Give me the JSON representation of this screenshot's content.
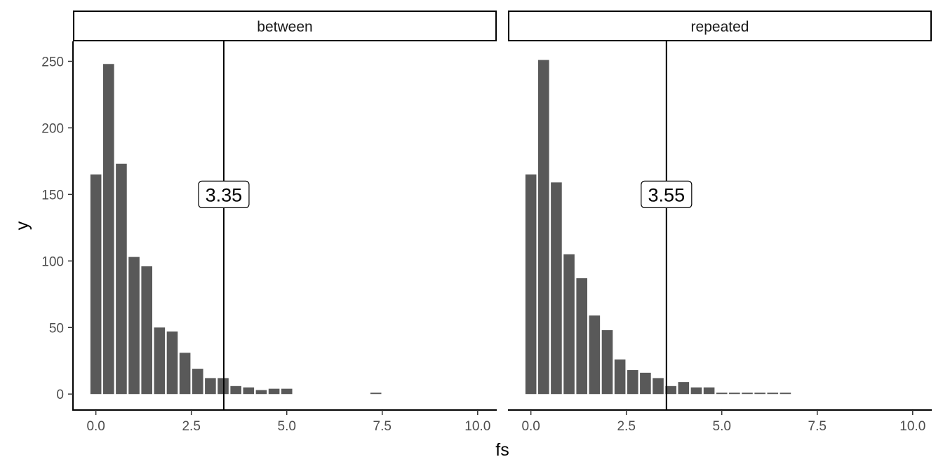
{
  "chart_data": {
    "type": "bar",
    "xlabel": "fs",
    "ylabel": "y",
    "xlim": [
      -0.6,
      10.5
    ],
    "ylim": [
      -12,
      265
    ],
    "xticks": [
      0.0,
      2.5,
      5.0,
      7.5,
      10.0
    ],
    "xtick_labels": [
      "0.0",
      "2.5",
      "5.0",
      "7.5",
      "10.0"
    ],
    "yticks": [
      0,
      50,
      100,
      150,
      200,
      250
    ],
    "ytick_labels": [
      "0",
      "50",
      "100",
      "150",
      "200",
      "250"
    ],
    "bin_width": 0.3333,
    "bar_color": "#595959",
    "grid": false,
    "panels": [
      {
        "name": "between",
        "x": [
          0.0,
          0.3333,
          0.6667,
          1.0,
          1.3333,
          1.6667,
          2.0,
          2.3333,
          2.6667,
          3.0,
          3.3333,
          3.6667,
          4.0,
          4.3333,
          4.6667,
          5.0,
          7.3333
        ],
        "values": [
          165,
          248,
          173,
          103,
          96,
          50,
          47,
          31,
          19,
          12,
          12,
          6,
          5,
          3,
          4,
          4,
          1
        ],
        "vline": 3.35,
        "vline_label": "3.35"
      },
      {
        "name": "repeated",
        "x": [
          0.0,
          0.3333,
          0.6667,
          1.0,
          1.3333,
          1.6667,
          2.0,
          2.3333,
          2.6667,
          3.0,
          3.3333,
          3.6667,
          4.0,
          4.3333,
          4.6667,
          5.0,
          5.3333,
          5.6667,
          6.0,
          6.3333,
          6.6667
        ],
        "values": [
          165,
          251,
          159,
          105,
          87,
          59,
          48,
          26,
          18,
          16,
          12,
          6,
          9,
          5,
          5,
          1,
          1,
          1,
          1,
          1,
          1
        ],
        "vline": 3.55,
        "vline_label": "3.55"
      }
    ]
  }
}
